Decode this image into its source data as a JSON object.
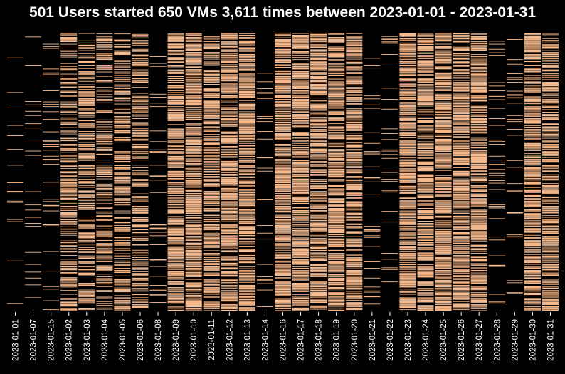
{
  "chart_data": {
    "type": "heatmap",
    "title": "501 Users started 650 VMs 3,611 times between 2023-01-01 - 2023-01-31",
    "xlabel": "",
    "ylabel": "",
    "categories": [
      "2023-01-01",
      "2023-01-07",
      "2023-01-15",
      "2023-01-02",
      "2023-01-03",
      "2023-01-04",
      "2023-01-05",
      "2023-01-06",
      "2023-01-08",
      "2023-01-09",
      "2023-01-10",
      "2023-01-11",
      "2023-01-12",
      "2023-01-13",
      "2023-01-14",
      "2023-01-16",
      "2023-01-17",
      "2023-01-18",
      "2023-01-19",
      "2023-01-20",
      "2023-01-21",
      "2023-01-22",
      "2023-01-23",
      "2023-01-24",
      "2023-01-25",
      "2023-01-26",
      "2023-01-27",
      "2023-01-28",
      "2023-01-29",
      "2023-01-30",
      "2023-01-31"
    ],
    "rows": 650,
    "relative_density": [
      0.05,
      0.06,
      0.08,
      0.55,
      0.55,
      0.55,
      0.55,
      0.55,
      0.1,
      0.85,
      0.9,
      0.85,
      0.85,
      0.85,
      0.08,
      0.9,
      0.9,
      0.85,
      0.85,
      0.85,
      0.1,
      0.08,
      0.9,
      0.9,
      0.9,
      0.9,
      0.85,
      0.12,
      0.1,
      0.85,
      0.85
    ],
    "color": "#f6b98c",
    "background": "#000000",
    "grid": false,
    "legend": "none"
  }
}
